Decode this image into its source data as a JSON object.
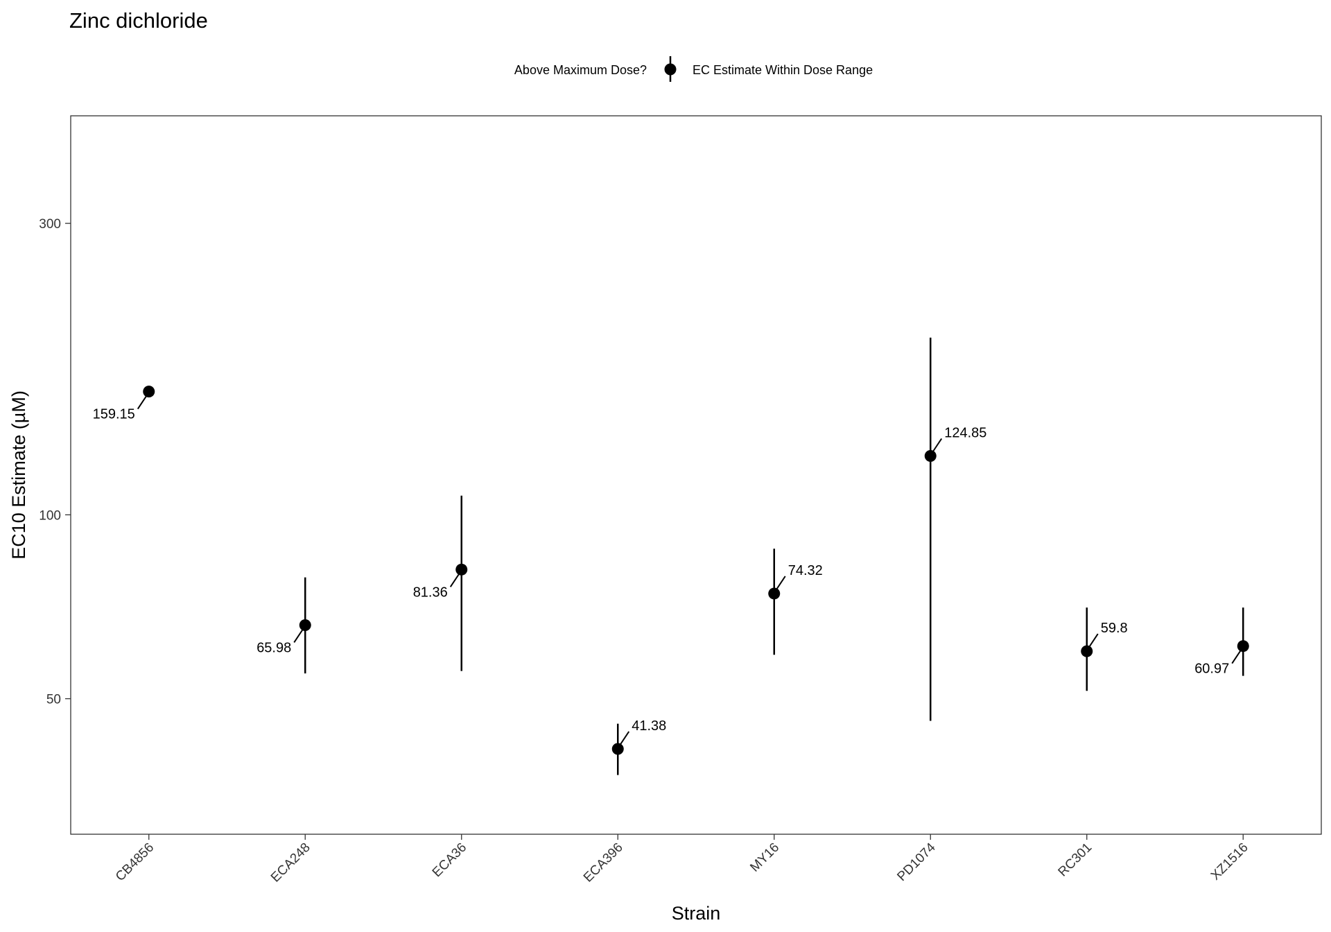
{
  "chart_data": {
    "type": "scatter",
    "title": "Zinc dichloride",
    "xlabel": "Strain",
    "ylabel": "EC10 Estimate (µM)",
    "y_scale": "log",
    "ylim": [
      30,
      450
    ],
    "yticks": [
      50,
      100,
      300
    ],
    "grid": false,
    "legend": {
      "position": "top",
      "title": "Above Maximum Dose?",
      "entries": [
        "EC Estimate Within Dose Range"
      ]
    },
    "categories": [
      "CB4856",
      "ECA248",
      "ECA36",
      "ECA396",
      "MY16",
      "PD1074",
      "RC301",
      "XZ1516"
    ],
    "series": [
      {
        "name": "EC Estimate Within Dose Range",
        "points": [
          {
            "x": "CB4856",
            "y": 159.15,
            "lower": null,
            "upper": null,
            "label": "159.15",
            "label_side": "left"
          },
          {
            "x": "ECA248",
            "y": 65.98,
            "lower": 55,
            "upper": 79,
            "label": "65.98",
            "label_side": "left"
          },
          {
            "x": "ECA36",
            "y": 81.36,
            "lower": 55.5,
            "upper": 107.5,
            "label": "81.36",
            "label_side": "left"
          },
          {
            "x": "ECA396",
            "y": 41.38,
            "lower": 37.5,
            "upper": 45.5,
            "label": "41.38",
            "label_side": "right"
          },
          {
            "x": "MY16",
            "y": 74.32,
            "lower": 59,
            "upper": 88,
            "label": "74.32",
            "label_side": "right"
          },
          {
            "x": "PD1074",
            "y": 124.85,
            "lower": 46,
            "upper": 195,
            "label": "124.85",
            "label_side": "right"
          },
          {
            "x": "RC301",
            "y": 59.8,
            "lower": 51.5,
            "upper": 70.5,
            "label": "59.8",
            "label_side": "right"
          },
          {
            "x": "XZ1516",
            "y": 60.97,
            "lower": 54.5,
            "upper": 70.5,
            "label": "60.97",
            "label_side": "left"
          }
        ]
      }
    ]
  }
}
